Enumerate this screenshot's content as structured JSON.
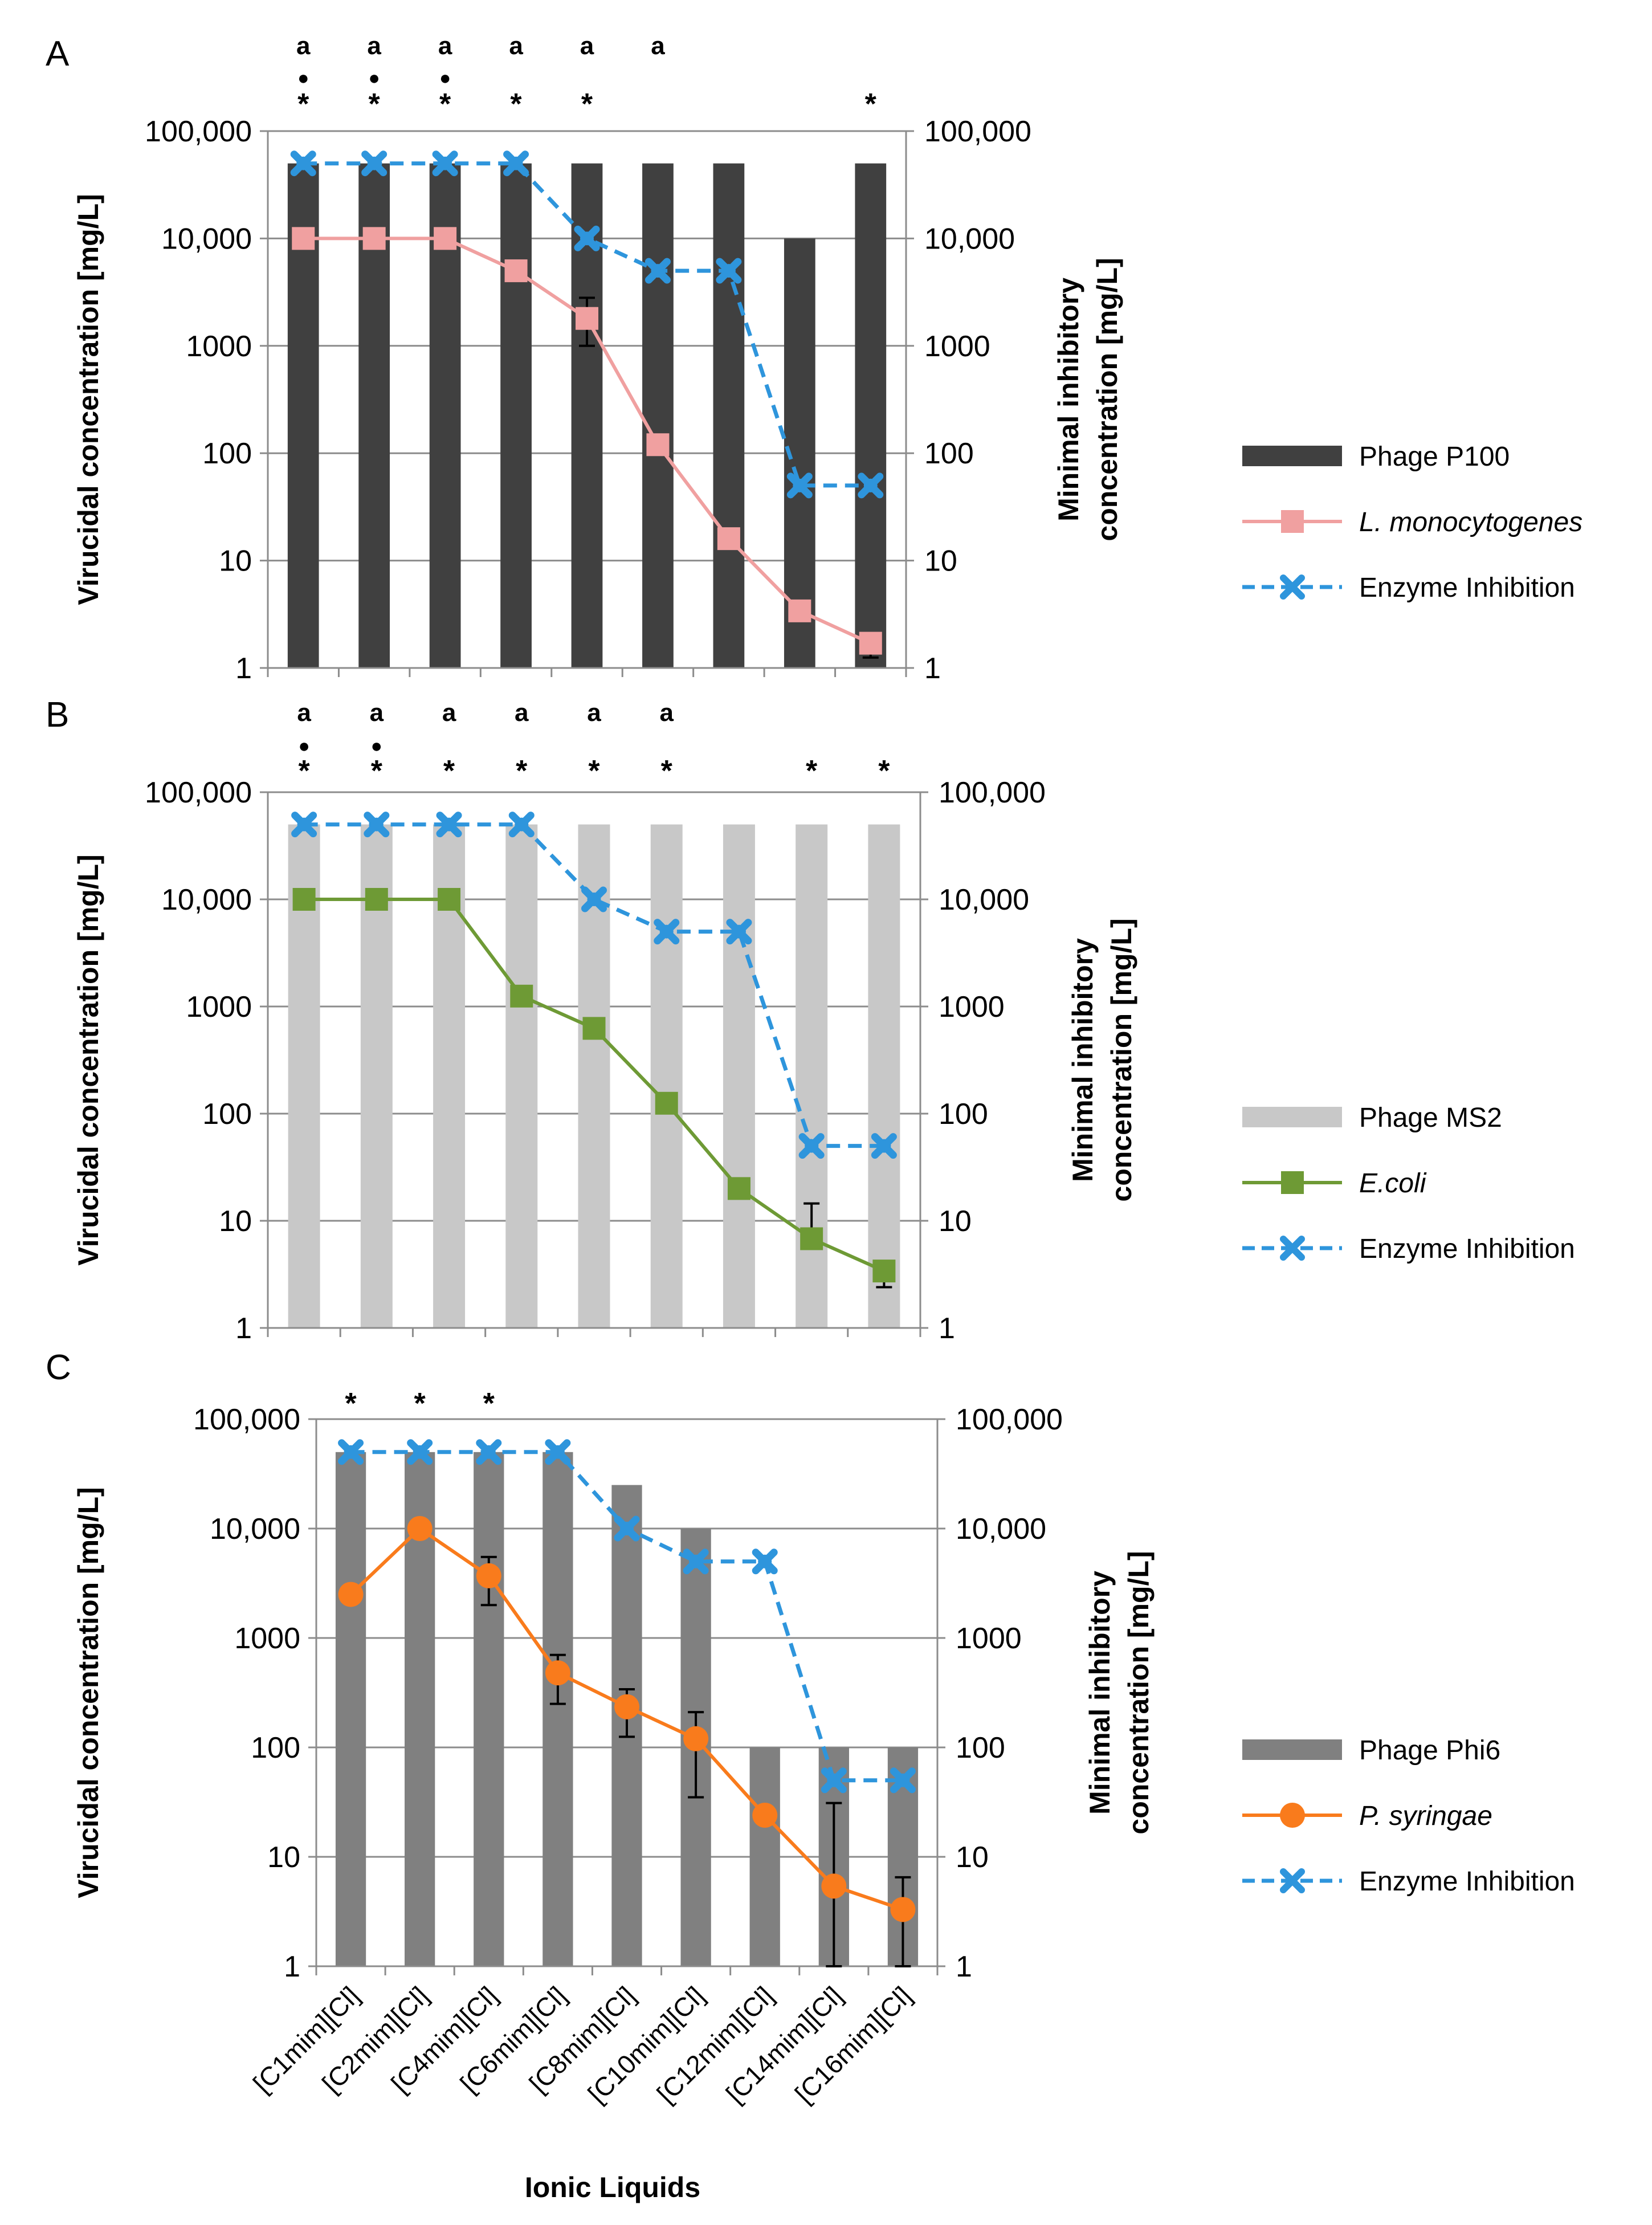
{
  "chart_data": [
    {
      "type": "bar",
      "panel_label": "A",
      "categories": [
        "[C1mim][Cl]",
        "[C2mim][Cl]",
        "[C4mim][Cl]",
        "[C6mim][Cl]",
        "[C8mim][Cl]",
        "[C10mim][Cl]",
        "[C12mim][Cl]",
        "[C14mim][Cl]",
        "[C16mim][Cl]"
      ],
      "yscale": "log",
      "ylim": [
        1,
        100000
      ],
      "ylabel": "Virucidal concentration [mg/L]",
      "y2label_lines": [
        "Minimal inhibitory",
        "concentration [mg/L]"
      ],
      "yticks": [
        "1",
        "10",
        "100",
        "1000",
        "10,000",
        "100,000"
      ],
      "bar_color": "#404040",
      "series": [
        {
          "name": "Phage P100",
          "kind": "bar",
          "values": [
            50000,
            50000,
            50000,
            50000,
            50000,
            50000,
            50000,
            10000,
            50000
          ]
        },
        {
          "name": "L. monocytogenes",
          "kind": "line",
          "marker": "square",
          "color": "#f0a0a0",
          "values": [
            10000,
            10000,
            10000,
            5000,
            1800,
            120,
            16,
            3.4,
            1.7
          ],
          "error": [
            null,
            null,
            null,
            null,
            [
              1000,
              2800
            ],
            null,
            null,
            null,
            [
              1.25,
              null
            ]
          ]
        },
        {
          "name": "Enzyme Inhibition",
          "kind": "dashed",
          "marker": "x",
          "color": "#2e95dc",
          "values": [
            50000,
            50000,
            50000,
            50000,
            10000,
            5000,
            5000,
            50,
            50
          ]
        }
      ],
      "significance": {
        "a": [
          "a",
          "a",
          "a",
          "a",
          "a",
          "a",
          "",
          "",
          ""
        ],
        "dot": [
          "●",
          "●",
          "●",
          "",
          "",
          "",
          "",
          "",
          ""
        ],
        "star": [
          "*",
          "*",
          "*",
          "*",
          "*",
          "",
          "",
          "",
          "*"
        ]
      }
    },
    {
      "type": "bar",
      "panel_label": "B",
      "categories": [
        "[C1mim][Cl]",
        "[C2mim][Cl]",
        "[C4mim][Cl]",
        "[C6mim][Cl]",
        "[C8mim][Cl]",
        "[C10mim][Cl]",
        "[C12mim][Cl]",
        "[C14mim][Cl]",
        "[C16mim][Cl]"
      ],
      "yscale": "log",
      "ylim": [
        1,
        100000
      ],
      "ylabel": "Virucidal concentration [mg/L]",
      "y2label_lines": [
        "Minimal inhibitory",
        "concentration [mg/L]"
      ],
      "yticks": [
        "1",
        "10",
        "100",
        "1000",
        "10,000",
        "100,000"
      ],
      "bar_color": "#c8c8c8",
      "series": [
        {
          "name": "Phage MS2",
          "kind": "bar",
          "values": [
            50000,
            50000,
            50000,
            50000,
            50000,
            50000,
            50000,
            50000,
            50000
          ]
        },
        {
          "name": "E.coli",
          "kind": "line",
          "marker": "square",
          "color": "#6e9a35",
          "values": [
            10000,
            10000,
            10000,
            1250,
            625,
            125,
            20,
            6.8,
            3.4
          ],
          "error": [
            null,
            null,
            null,
            null,
            null,
            null,
            null,
            [
              null,
              14.5
            ],
            [
              2.4,
              null
            ]
          ]
        },
        {
          "name": "Enzyme Inhibition",
          "kind": "dashed",
          "marker": "x",
          "color": "#2e95dc",
          "values": [
            50000,
            50000,
            50000,
            50000,
            10000,
            5000,
            5000,
            50,
            50
          ]
        }
      ],
      "significance": {
        "a": [
          "a",
          "a",
          "a",
          "a",
          "a",
          "a",
          "",
          "",
          ""
        ],
        "dot": [
          "●",
          "●",
          "",
          "",
          "",
          "",
          "",
          "",
          ""
        ],
        "star": [
          "*",
          "*",
          "*",
          "*",
          "*",
          "*",
          "",
          "*",
          "*"
        ]
      }
    },
    {
      "type": "bar",
      "panel_label": "C",
      "categories": [
        "[C1mim][Cl]",
        "[C2mim][Cl]",
        "[C4mim][Cl]",
        "[C6mim][Cl]",
        "[C8mim][Cl]",
        "[C10mim][Cl]",
        "[C12mim][Cl]",
        "[C14mim][Cl]",
        "[C16mim][Cl]"
      ],
      "yscale": "log",
      "ylim": [
        1,
        100000
      ],
      "ylabel": "Virucidal concentration [mg/L]",
      "y2label_lines": [
        "Minimal inhibitory",
        "concentration [mg/L]"
      ],
      "yticks": [
        "1",
        "10",
        "100",
        "1000",
        "10,000",
        "100,000"
      ],
      "xlabel": "Ionic Liquids",
      "bar_color": "#808080",
      "series": [
        {
          "name": "Phage Phi6",
          "kind": "bar",
          "values": [
            50000,
            50000,
            50000,
            50000,
            25000,
            10000,
            100,
            100,
            100
          ]
        },
        {
          "name": "P. syringae",
          "kind": "line",
          "marker": "circle",
          "color": "#f97b1c",
          "values": [
            2500,
            10000,
            3700,
            480,
            235,
            120,
            24,
            5.4,
            3.3
          ],
          "error": [
            null,
            null,
            [
              2000,
              5500
            ],
            [
              250,
              700
            ],
            [
              125,
              340
            ],
            [
              35,
              210
            ],
            null,
            [
              1,
              31
            ],
            [
              1,
              6.5
            ]
          ]
        },
        {
          "name": "Enzyme Inhibition",
          "kind": "dashed",
          "marker": "x",
          "color": "#2e95dc",
          "values": [
            50000,
            50000,
            50000,
            50000,
            10000,
            5000,
            5000,
            50,
            50
          ]
        }
      ],
      "significance": {
        "a": [
          "",
          "",
          "",
          "",
          "",
          "",
          "",
          "",
          ""
        ],
        "dot": [
          "",
          "",
          "",
          "",
          "",
          "",
          "",
          "",
          ""
        ],
        "star": [
          "*",
          "*",
          "*",
          "",
          "",
          "",
          "",
          "",
          ""
        ]
      }
    }
  ]
}
